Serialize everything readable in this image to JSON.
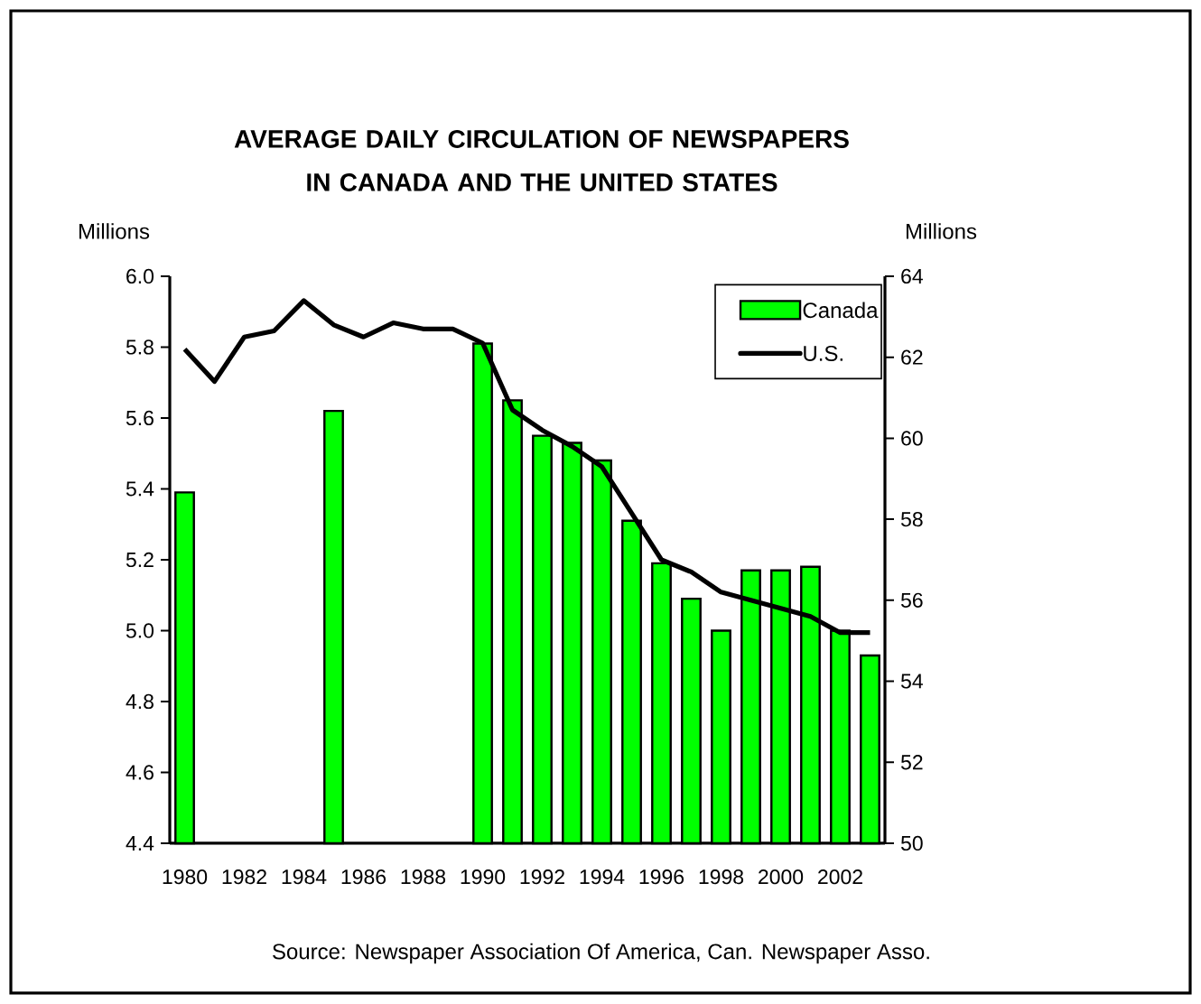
{
  "chart_data": {
    "type": "bar",
    "title": "AVERAGE DAILY CIRCULATION OF NEWSPAPERS IN CANADA AND THE UNITED STATES",
    "ylabel": "Millions",
    "y2label": "Millions",
    "categories": [
      "1980",
      null,
      "1982",
      null,
      "1984",
      null,
      "1986",
      null,
      "1988",
      null,
      "1990",
      null,
      "1992",
      null,
      "1994",
      null,
      "1996",
      null,
      "1998",
      null,
      "2000",
      null,
      "2002",
      null
    ],
    "series": [
      {
        "name": "Canada",
        "color": "#00ff00",
        "values": [
          5.39,
          null,
          null,
          null,
          null,
          5.62,
          null,
          null,
          null,
          null,
          5.81,
          5.65,
          5.55,
          5.53,
          5.48,
          5.31,
          5.19,
          5.09,
          5.0,
          5.17,
          5.17,
          5.18,
          5.0,
          4.93
        ]
      },
      {
        "name": "U.S.",
        "type": "line",
        "axis": "y2",
        "color": "#000000",
        "values": [
          62.2,
          61.4,
          62.5,
          62.65,
          63.4,
          62.8,
          62.5,
          62.85,
          62.7,
          62.7,
          62.35,
          60.7,
          60.2,
          59.8,
          59.3,
          58.15,
          57.0,
          56.7,
          56.2,
          56.0,
          55.8,
          55.6,
          55.2,
          55.2
        ]
      }
    ],
    "ylim": [
      4.4,
      6.0
    ],
    "yticks": [
      4.4,
      4.6,
      4.8,
      {
        "value": 5.0,
        "label": "5.0"
      },
      5.2,
      5.4,
      5.6,
      5.8,
      {
        "value": 6.0,
        "label": "6.0"
      }
    ],
    "y2lim": [
      50,
      64
    ],
    "y2ticks": [
      50,
      52,
      54,
      56,
      58,
      60,
      62,
      64
    ],
    "legend": "top right",
    "grid": false,
    "line_style": "solid",
    "marker": "none",
    "annotations": [
      "Source: Newspaper Association Of America, Can. Newspaper Asso."
    ]
  }
}
